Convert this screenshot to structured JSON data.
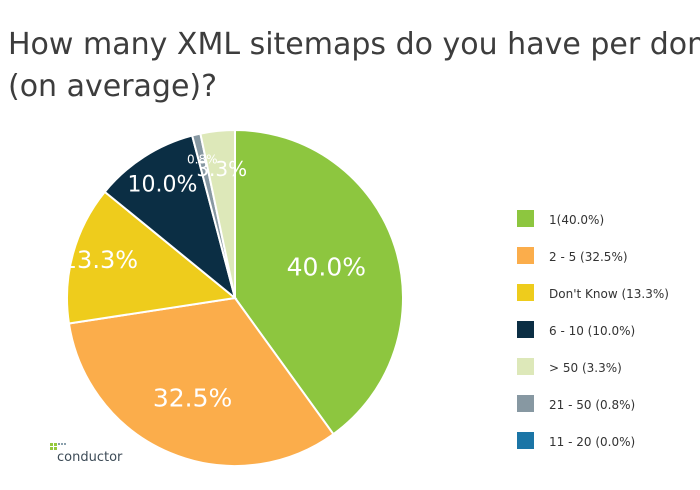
{
  "chart_data": {
    "type": "pie",
    "title": "How many XML sitemaps do you have per domain (on average)?",
    "title_lines": [
      "How many XML sitemaps do you have per domain",
      "(on average)?"
    ],
    "slices": [
      {
        "label": "1",
        "legend": "1(40.0%)",
        "value": 40.0,
        "display": "40.0%",
        "color": "#8dc63f",
        "text_color": "#ffffff"
      },
      {
        "label": "2 - 5",
        "legend": "2 - 5 (32.5%)",
        "value": 32.5,
        "display": "32.5%",
        "color": "#fbad4b",
        "text_color": "#ffffff"
      },
      {
        "label": "Don't Know",
        "legend": "Don't Know (13.3%)",
        "value": 13.3,
        "display": "13.3%",
        "color": "#eecc1c",
        "text_color": "#ffffff"
      },
      {
        "label": "6 - 10",
        "legend": "6 - 10 (10.0%)",
        "value": 10.0,
        "display": "10.0%",
        "color": "#0b2e44",
        "text_color": "#ffffff"
      },
      {
        "label": "21 - 50",
        "legend": "21 - 50 (0.8%)",
        "value": 0.8,
        "display": "0.8%",
        "color": "#8798a2",
        "text_color": "#ffffff"
      },
      {
        "label": "> 50",
        "legend": "> 50 (3.3%)",
        "value": 3.3,
        "display": "3.3%",
        "color": "#dde8b9",
        "text_color": "#ffffff"
      }
    ],
    "legend_order": [
      {
        "label": "1(40.0%)",
        "color": "#8dc63f"
      },
      {
        "label": "2 - 5 (32.5%)",
        "color": "#fbad4b"
      },
      {
        "label": "Don't Know (13.3%)",
        "color": "#eecc1c"
      },
      {
        "label": "6 - 10 (10.0%)",
        "color": "#0b2e44"
      },
      {
        "label": "> 50 (3.3%)",
        "color": "#dde8b9"
      },
      {
        "label": "21 - 50 (0.8%)",
        "color": "#8798a2"
      },
      {
        "label": "11 - 20 (0.0%)",
        "color": "#1b75a6"
      }
    ],
    "legend_position": "right"
  },
  "branding": {
    "logo_text": "conductor"
  }
}
